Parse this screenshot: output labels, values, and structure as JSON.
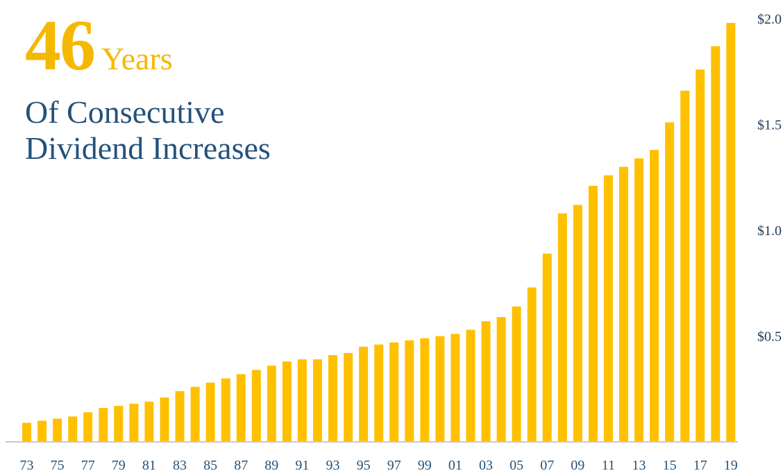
{
  "header": {
    "number": "46",
    "years_word": "Years",
    "subtitle_line1": "Of Consecutive",
    "subtitle_line2": "Dividend Increases"
  },
  "colors": {
    "bar": "#FFC000",
    "headline_accent": "#F5B800",
    "subtitle": "#24527A",
    "axis": "#c8c8c8"
  },
  "chart_data": {
    "type": "bar",
    "title": "",
    "xlabel": "",
    "ylabel": "",
    "grid": false,
    "ylim": [
      0,
      2.0
    ],
    "categories": [
      "73",
      "74",
      "75",
      "76",
      "77",
      "78",
      "79",
      "80",
      "81",
      "82",
      "83",
      "84",
      "85",
      "86",
      "87",
      "88",
      "89",
      "90",
      "91",
      "92",
      "93",
      "94",
      "95",
      "96",
      "97",
      "98",
      "99",
      "00",
      "01",
      "02",
      "03",
      "04",
      "05",
      "06",
      "07",
      "08",
      "09",
      "10",
      "11",
      "12",
      "13",
      "14",
      "15",
      "16",
      "17",
      "18",
      "19"
    ],
    "x_tick_labels": [
      "73",
      "75",
      "77",
      "79",
      "81",
      "83",
      "85",
      "87",
      "89",
      "91",
      "93",
      "95",
      "97",
      "99",
      "01",
      "03",
      "05",
      "07",
      "09",
      "11",
      "13",
      "15",
      "17",
      "19"
    ],
    "y_tick_labels": [
      "$0.5",
      "$1.0",
      "$1.5",
      "$2.0"
    ],
    "y_tick_values": [
      0.5,
      1.0,
      1.5,
      2.0
    ],
    "values": [
      0.09,
      0.1,
      0.11,
      0.12,
      0.14,
      0.16,
      0.17,
      0.18,
      0.19,
      0.21,
      0.24,
      0.26,
      0.28,
      0.3,
      0.32,
      0.34,
      0.36,
      0.38,
      0.39,
      0.39,
      0.41,
      0.42,
      0.45,
      0.46,
      0.47,
      0.48,
      0.49,
      0.5,
      0.51,
      0.53,
      0.57,
      0.59,
      0.64,
      0.73,
      0.89,
      1.08,
      1.12,
      1.21,
      1.26,
      1.3,
      1.34,
      1.38,
      1.51,
      1.66,
      1.76,
      1.87,
      1.98
    ]
  }
}
